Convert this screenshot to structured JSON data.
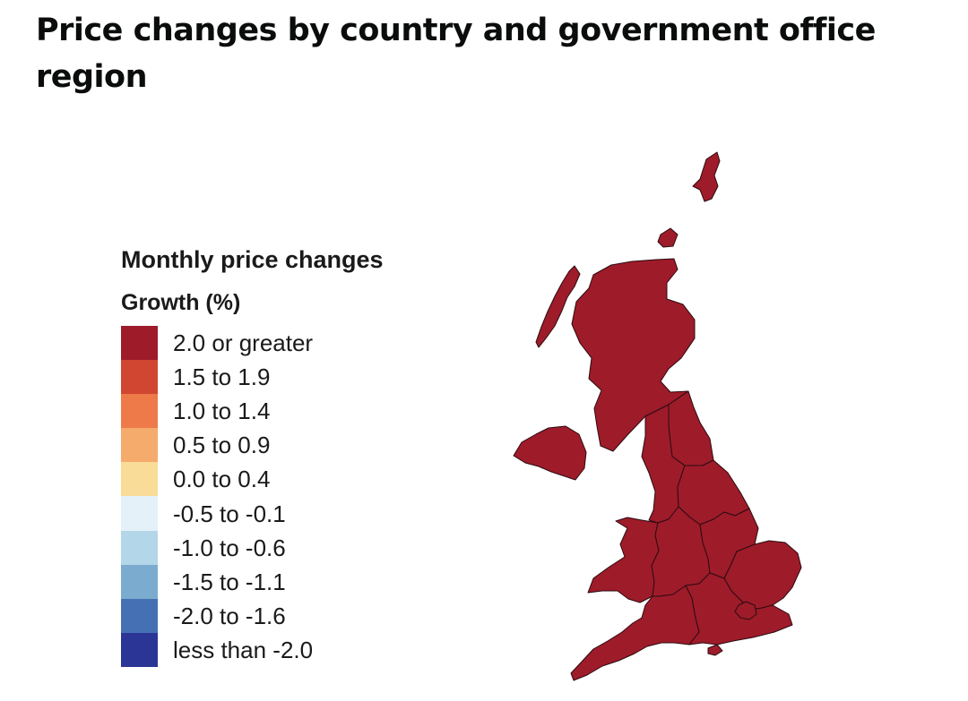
{
  "page": {
    "title": "Price changes by country and government office region"
  },
  "legend": {
    "title": "Monthly price changes",
    "subtitle": "Growth (%)",
    "items": [
      {
        "label": "2.0 or greater",
        "color": "#9e1b2a"
      },
      {
        "label": "1.5 to 1.9",
        "color": "#d04631"
      },
      {
        "label": "1.0 to 1.4",
        "color": "#ed7a48"
      },
      {
        "label": "0.5 to 0.9",
        "color": "#f4ab6c"
      },
      {
        "label": "0.0 to 0.4",
        "color": "#f9dc97"
      },
      {
        "label": "-0.5 to -0.1",
        "color": "#e4f1f8"
      },
      {
        "label": "-1.0 to -0.6",
        "color": "#b3d6e8"
      },
      {
        "label": "-1.5 to -1.1",
        "color": "#7baccf"
      },
      {
        "label": "-2.0 to -1.6",
        "color": "#4670b4"
      },
      {
        "label": "less than -2.0",
        "color": "#2a3595"
      }
    ]
  },
  "map": {
    "regions": [
      {
        "name": "Scotland",
        "category": "2.0 or greater"
      },
      {
        "name": "Northern Ireland",
        "category": "2.0 or greater"
      },
      {
        "name": "North East",
        "category": "2.0 or greater"
      },
      {
        "name": "North West",
        "category": "2.0 or greater"
      },
      {
        "name": "Yorkshire and The Humber",
        "category": "2.0 or greater"
      },
      {
        "name": "Wales",
        "category": "2.0 or greater"
      },
      {
        "name": "West Midlands",
        "category": "2.0 or greater"
      },
      {
        "name": "East Midlands",
        "category": "2.0 or greater"
      },
      {
        "name": "East of England",
        "category": "2.0 or greater"
      },
      {
        "name": "London",
        "category": "2.0 or greater"
      },
      {
        "name": "South East",
        "category": "2.0 or greater"
      },
      {
        "name": "South West",
        "category": "2.0 or greater"
      }
    ]
  }
}
